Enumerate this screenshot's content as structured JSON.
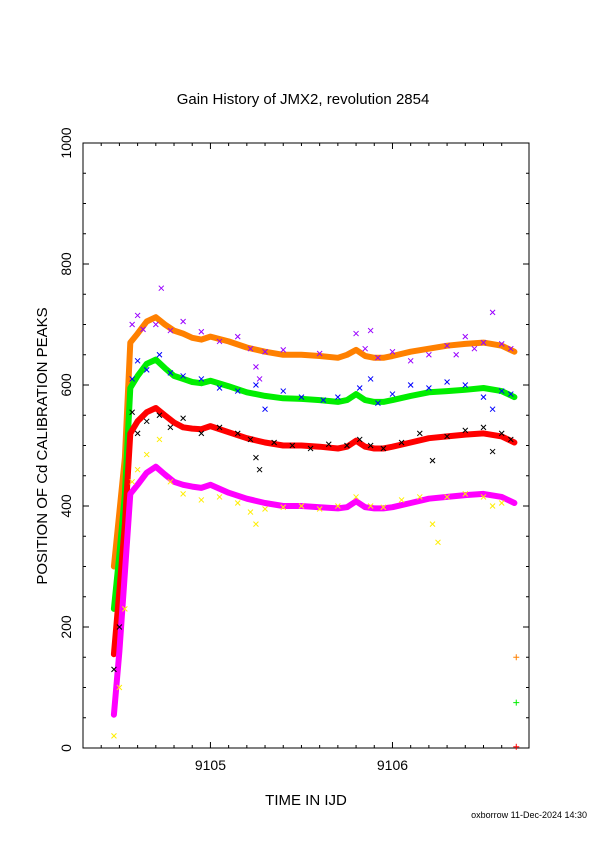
{
  "chart_data": {
    "type": "scatter",
    "title": "Gain History of JMX2, revolution 2854",
    "xlabel": "TIME IN IJD",
    "ylabel": "POSITION OF Cd CALIBRATION PEAKS",
    "xlim": [
      9104.3,
      9106.75
    ],
    "ylim": [
      0,
      1000
    ],
    "x_ticks": [
      9105,
      9106
    ],
    "y_ticks": [
      0,
      200,
      400,
      600,
      800,
      1000
    ],
    "grid": false,
    "footer": "oxborrow 11-Dec-2024 14:30",
    "ramp": {
      "x": [
        9104.47,
        9104.57
      ],
      "comment_free": true
    },
    "smooth_series": [
      {
        "color": "#ff8000",
        "x": [
          9104.47,
          9104.5,
          9104.53,
          9104.56,
          9104.6,
          9104.65,
          9104.7,
          9104.75,
          9104.8,
          9104.85,
          9104.9,
          9104.95,
          9105.0,
          9105.1,
          9105.2,
          9105.3,
          9105.4,
          9105.5,
          9105.6,
          9105.7,
          9105.75,
          9105.8,
          9105.85,
          9105.9,
          9105.95,
          9106.0,
          9106.1,
          9106.2,
          9106.3,
          9106.4,
          9106.5,
          9106.6,
          9106.67
        ],
        "y": [
          300,
          390,
          480,
          670,
          685,
          705,
          712,
          700,
          690,
          685,
          678,
          675,
          680,
          672,
          662,
          655,
          650,
          650,
          648,
          645,
          650,
          658,
          648,
          645,
          645,
          648,
          655,
          660,
          665,
          668,
          670,
          665,
          655
        ]
      },
      {
        "color": "#00ee00",
        "x": [
          9104.47,
          9104.5,
          9104.53,
          9104.56,
          9104.6,
          9104.65,
          9104.7,
          9104.75,
          9104.8,
          9104.85,
          9104.9,
          9104.95,
          9105.0,
          9105.1,
          9105.2,
          9105.3,
          9105.4,
          9105.5,
          9105.6,
          9105.7,
          9105.75,
          9105.8,
          9105.85,
          9105.9,
          9105.95,
          9106.0,
          9106.1,
          9106.2,
          9106.3,
          9106.4,
          9106.5,
          9106.6,
          9106.67
        ],
        "y": [
          230,
          320,
          420,
          595,
          615,
          635,
          642,
          628,
          615,
          610,
          605,
          603,
          607,
          598,
          588,
          582,
          578,
          577,
          575,
          572,
          575,
          585,
          575,
          572,
          572,
          575,
          582,
          588,
          590,
          592,
          595,
          590,
          580
        ]
      },
      {
        "color": "#ff0000",
        "x": [
          9104.47,
          9104.5,
          9104.53,
          9104.56,
          9104.6,
          9104.65,
          9104.7,
          9104.75,
          9104.8,
          9104.85,
          9104.9,
          9104.95,
          9105.0,
          9105.1,
          9105.2,
          9105.3,
          9105.4,
          9105.5,
          9105.6,
          9105.7,
          9105.75,
          9105.8,
          9105.85,
          9105.9,
          9105.95,
          9106.0,
          9106.1,
          9106.2,
          9106.3,
          9106.4,
          9106.5,
          9106.6,
          9106.67
        ],
        "y": [
          155,
          260,
          370,
          520,
          540,
          555,
          562,
          550,
          538,
          530,
          528,
          527,
          532,
          522,
          512,
          505,
          500,
          500,
          498,
          495,
          498,
          508,
          498,
          495,
          495,
          498,
          505,
          512,
          515,
          518,
          520,
          515,
          505
        ]
      },
      {
        "color": "#ff00ff",
        "x": [
          9104.47,
          9104.5,
          9104.53,
          9104.56,
          9104.6,
          9104.65,
          9104.7,
          9104.75,
          9104.8,
          9104.85,
          9104.9,
          9104.95,
          9105.0,
          9105.1,
          9105.2,
          9105.3,
          9105.4,
          9105.5,
          9105.6,
          9105.7,
          9105.75,
          9105.8,
          9105.85,
          9105.9,
          9105.95,
          9106.0,
          9106.1,
          9106.2,
          9106.3,
          9106.4,
          9106.5,
          9106.6,
          9106.67
        ],
        "y": [
          55,
          160,
          290,
          420,
          435,
          455,
          465,
          452,
          440,
          435,
          432,
          430,
          435,
          422,
          412,
          405,
          400,
          400,
          398,
          396,
          398,
          408,
          398,
          396,
          396,
          398,
          405,
          412,
          415,
          418,
          420,
          415,
          405
        ]
      }
    ],
    "scatter_series": [
      {
        "color": "#9900ff",
        "x": [
          9104.57,
          9104.6,
          9104.63,
          9104.7,
          9104.73,
          9104.78,
          9104.85,
          9104.95,
          9105.05,
          9105.15,
          9105.22,
          9105.25,
          9105.27,
          9105.3,
          9105.4,
          9105.6,
          9105.8,
          9105.85,
          9105.88,
          9105.92,
          9106.0,
          9106.1,
          9106.2,
          9106.3,
          9106.35,
          9106.4,
          9106.45,
          9106.5,
          9106.55,
          9106.6,
          9106.65
        ],
        "y": [
          700,
          715,
          692,
          700,
          760,
          690,
          705,
          688,
          672,
          680,
          660,
          630,
          610,
          655,
          658,
          652,
          685,
          660,
          690,
          645,
          655,
          640,
          650,
          665,
          650,
          680,
          660,
          670,
          720,
          668,
          660
        ]
      },
      {
        "color": "#0000ff",
        "x": [
          9104.57,
          9104.6,
          9104.65,
          9104.72,
          9104.78,
          9104.85,
          9104.95,
          9105.05,
          9105.15,
          9105.25,
          9105.3,
          9105.4,
          9105.5,
          9105.62,
          9105.7,
          9105.82,
          9105.88,
          9105.92,
          9106.0,
          9106.1,
          9106.2,
          9106.3,
          9106.4,
          9106.5,
          9106.55,
          9106.6,
          9106.65
        ],
        "y": [
          610,
          640,
          625,
          650,
          620,
          615,
          610,
          595,
          590,
          600,
          560,
          590,
          580,
          575,
          580,
          595,
          610,
          570,
          585,
          600,
          595,
          605,
          600,
          580,
          560,
          590,
          585
        ]
      },
      {
        "color": "#000000",
        "x": [
          9104.47,
          9104.5,
          9104.57,
          9104.6,
          9104.65,
          9104.72,
          9104.78,
          9104.85,
          9104.95,
          9105.05,
          9105.15,
          9105.22,
          9105.25,
          9105.27,
          9105.35,
          9105.45,
          9105.55,
          9105.65,
          9105.75,
          9105.82,
          9105.88,
          9105.95,
          9106.05,
          9106.15,
          9106.22,
          9106.3,
          9106.4,
          9106.5,
          9106.55,
          9106.6,
          9106.65
        ],
        "y": [
          130,
          200,
          555,
          520,
          540,
          550,
          530,
          545,
          520,
          530,
          520,
          510,
          480,
          460,
          505,
          500,
          495,
          502,
          500,
          510,
          500,
          495,
          505,
          520,
          475,
          515,
          525,
          530,
          490,
          520,
          510
        ]
      },
      {
        "color": "#ffee00",
        "x": [
          9104.47,
          9104.5,
          9104.53,
          9104.57,
          9104.6,
          9104.65,
          9104.72,
          9104.78,
          9104.85,
          9104.95,
          9105.05,
          9105.15,
          9105.22,
          9105.25,
          9105.3,
          9105.4,
          9105.5,
          9105.6,
          9105.7,
          9105.8,
          9105.88,
          9105.95,
          9106.05,
          9106.15,
          9106.22,
          9106.25,
          9106.3,
          9106.4,
          9106.5,
          9106.55,
          9106.6
        ],
        "y": [
          20,
          100,
          230,
          440,
          460,
          485,
          510,
          440,
          420,
          410,
          415,
          405,
          390,
          370,
          395,
          398,
          400,
          395,
          400,
          415,
          400,
          398,
          410,
          415,
          370,
          340,
          415,
          420,
          415,
          400,
          405
        ]
      }
    ],
    "end_markers": [
      {
        "x": 9106.68,
        "y": 150,
        "symbol": "+",
        "color": "#ff8000"
      },
      {
        "x": 9106.68,
        "y": 75,
        "symbol": "+",
        "color": "#00ee00"
      },
      {
        "x": 9106.68,
        "y": 2,
        "symbol": "+",
        "color": "#ff0000"
      }
    ]
  }
}
